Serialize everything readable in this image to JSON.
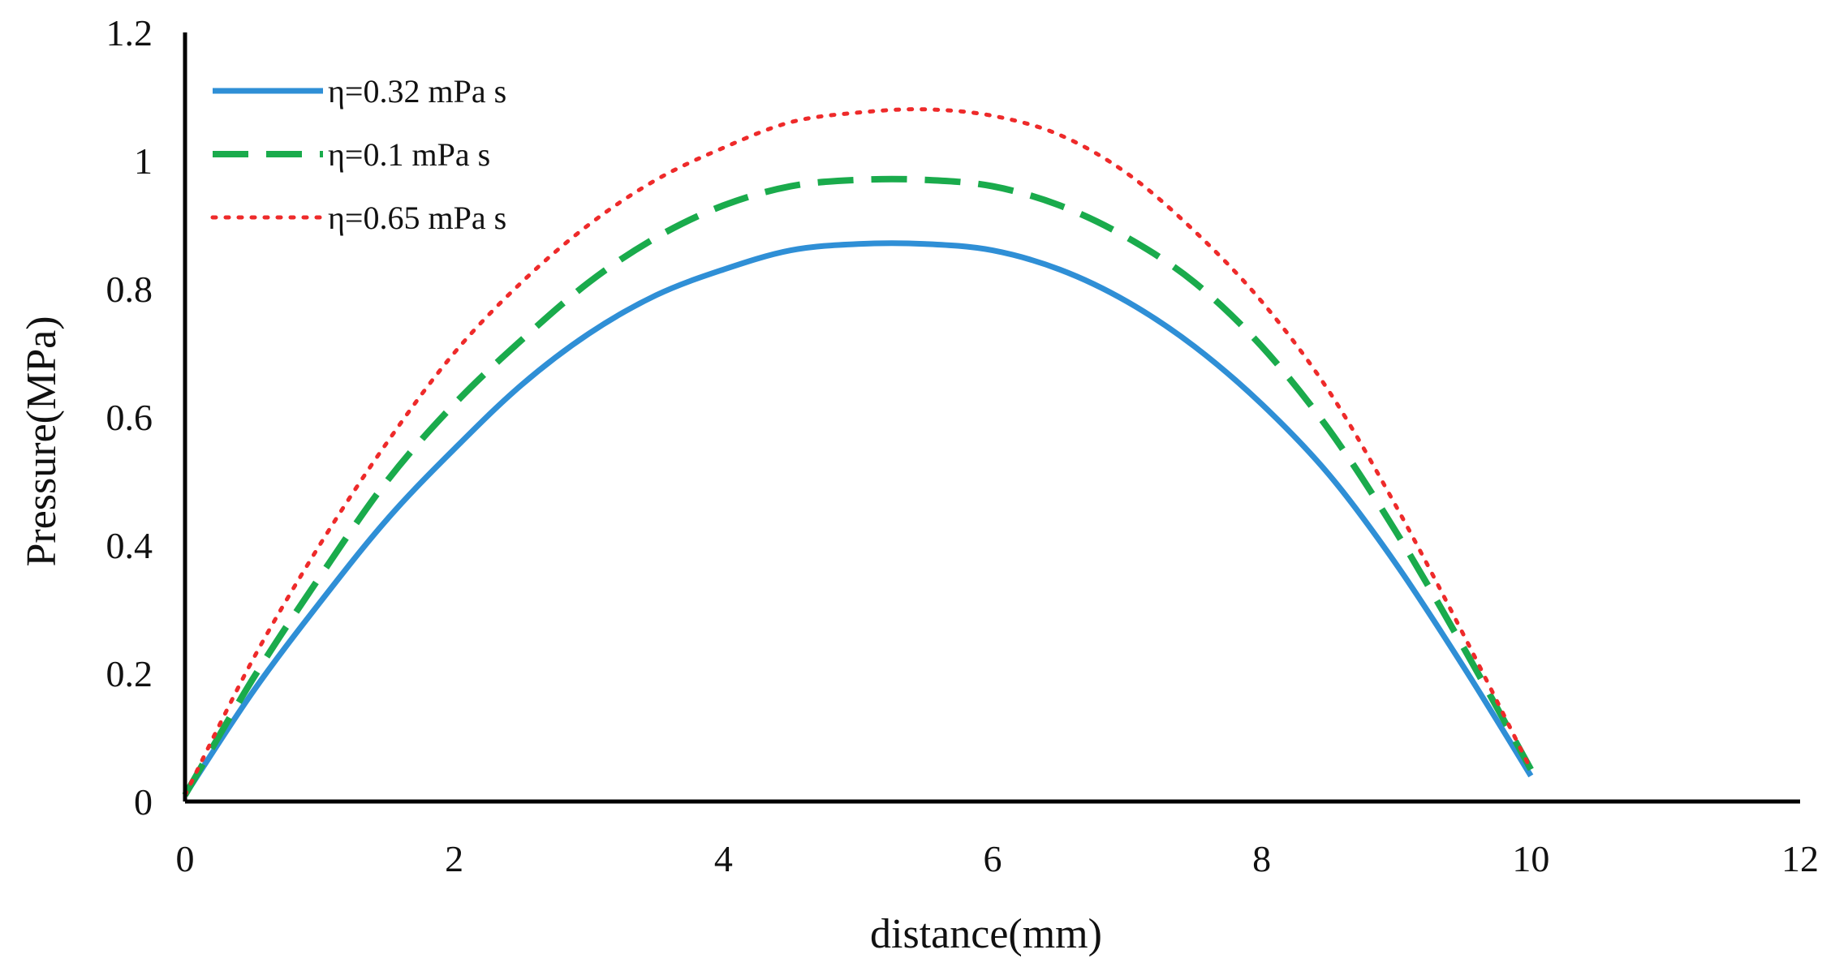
{
  "chart_data": {
    "type": "line",
    "title": "",
    "xlabel": "distance(mm)",
    "ylabel": "Pressure(MPa)",
    "xlim": [
      0,
      12
    ],
    "ylim": [
      0,
      1.2
    ],
    "xticks": [
      0,
      2,
      4,
      6,
      8,
      10,
      12
    ],
    "yticks": [
      0,
      0.2,
      0.4,
      0.6,
      0.8,
      1,
      1.2
    ],
    "xtick_labels": [
      "0",
      "2",
      "4",
      "6",
      "8",
      "10",
      "12"
    ],
    "ytick_labels": [
      "0",
      "0.2",
      "0.4",
      "0.6",
      "0.8",
      "1",
      "1.2"
    ],
    "grid": false,
    "legend_position": "top-left",
    "series": [
      {
        "name": "η=0.32 mPa s",
        "color": "#2f8fd6",
        "style": "solid",
        "x": [
          0,
          0.5,
          1,
          1.5,
          2,
          2.5,
          3,
          3.5,
          4,
          4.5,
          5,
          5.5,
          6,
          6.5,
          7,
          7.5,
          8,
          8.5,
          9,
          9.5,
          10
        ],
        "y": [
          0.01,
          0.17,
          0.31,
          0.44,
          0.55,
          0.65,
          0.73,
          0.79,
          0.83,
          0.86,
          0.87,
          0.87,
          0.86,
          0.83,
          0.78,
          0.71,
          0.62,
          0.51,
          0.37,
          0.21,
          0.04
        ]
      },
      {
        "name": "η=0.1 mPa s",
        "color": "#1aab4c",
        "style": "dashed",
        "x": [
          0,
          0.5,
          1,
          1.5,
          2,
          2.5,
          3,
          3.5,
          4,
          4.5,
          5,
          5.5,
          6,
          6.5,
          7,
          7.5,
          8,
          8.5,
          9,
          9.5,
          10
        ],
        "y": [
          0.01,
          0.19,
          0.35,
          0.5,
          0.62,
          0.72,
          0.81,
          0.88,
          0.93,
          0.96,
          0.97,
          0.97,
          0.96,
          0.93,
          0.88,
          0.81,
          0.71,
          0.58,
          0.42,
          0.24,
          0.05
        ]
      },
      {
        "name": "η=0.65 mPa s",
        "color": "#ee2a2a",
        "style": "dotted",
        "x": [
          0,
          0.5,
          1,
          1.5,
          2,
          2.5,
          3,
          3.5,
          4,
          4.5,
          5,
          5.5,
          6,
          6.5,
          7,
          7.5,
          8,
          8.5,
          9,
          9.5,
          10
        ],
        "y": [
          0.01,
          0.22,
          0.4,
          0.56,
          0.7,
          0.81,
          0.9,
          0.97,
          1.02,
          1.06,
          1.075,
          1.08,
          1.07,
          1.04,
          0.98,
          0.89,
          0.78,
          0.64,
          0.46,
          0.26,
          0.05
        ]
      }
    ]
  }
}
